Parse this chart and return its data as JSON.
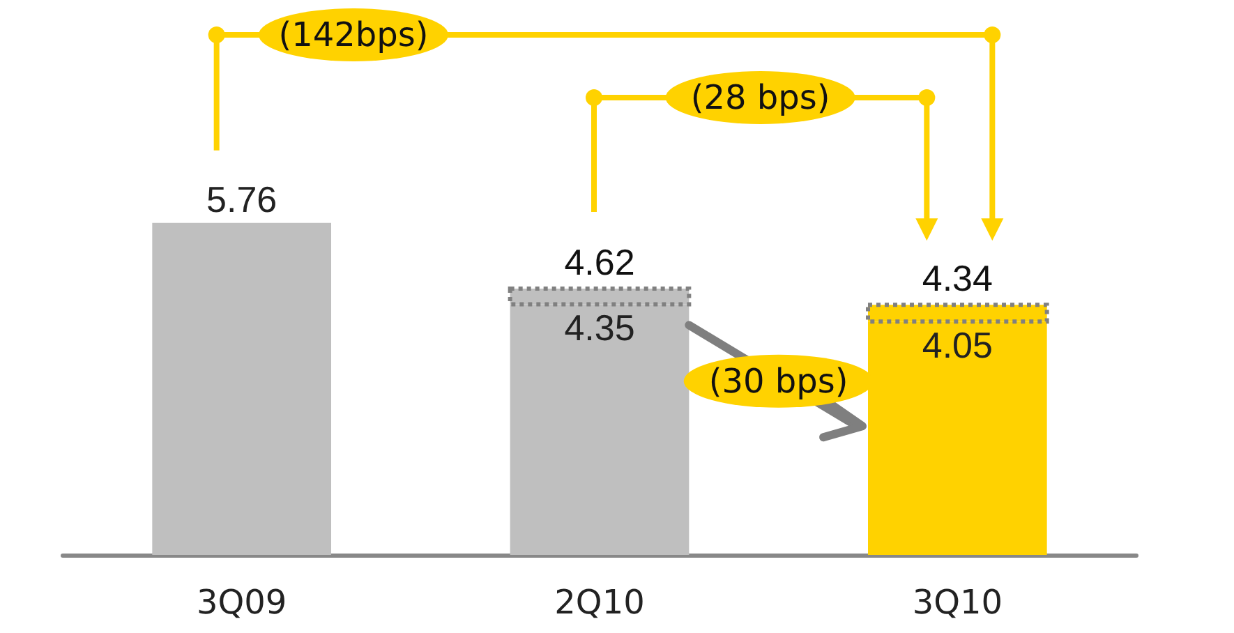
{
  "chart_data": {
    "type": "bar",
    "stacked": true,
    "categories": [
      "3Q09",
      "2Q10",
      "3Q10"
    ],
    "series": [
      {
        "colors": [
          "#bfbfbf",
          "#bfbfbf",
          "#ffd200"
        ],
        "values": [
          5.76,
          4.35,
          4.05
        ],
        "value_labels": [
          "5.76",
          "4.35",
          "4.05"
        ]
      },
      {
        "colors": [
          "#bfbfbf",
          "#bfbfbf",
          "#ffd200"
        ],
        "values": [
          null,
          0.27,
          0.29
        ],
        "line_style": "dotted"
      }
    ],
    "totals": [
      null,
      "4.62",
      "4.34"
    ],
    "annotations": [
      "(142bps)",
      "(28 bps)",
      "(30 bps)"
    ],
    "grid": false
  }
}
